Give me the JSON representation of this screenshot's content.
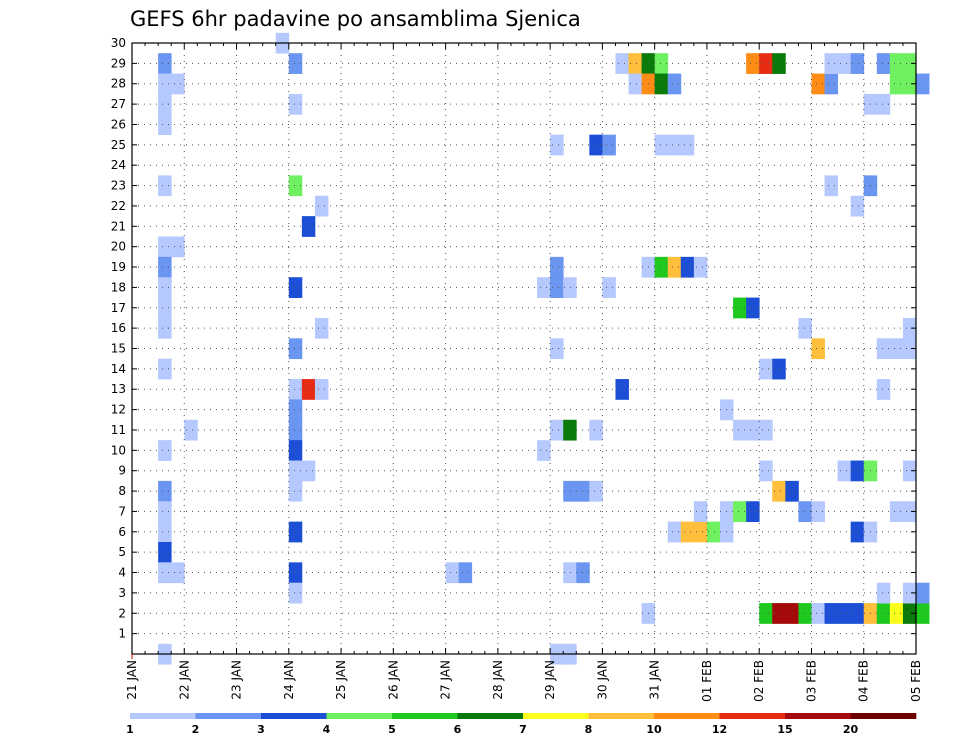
{
  "chart_data": {
    "type": "heatmap",
    "title": "GEFS 6hr padavine po ansamblima Sjenica",
    "xlabel": "",
    "ylabel": "",
    "x_ticks": [
      "21 JAN",
      "22 JAN",
      "23 JAN",
      "24 JAN",
      "25 JAN",
      "26 JAN",
      "27 JAN",
      "28 JAN",
      "29 JAN",
      "30 JAN",
      "31 JAN",
      "01 FEB",
      "02 FEB",
      "03 FEB",
      "04 FEB",
      "05 FEB"
    ],
    "x_steps_per_day": 4,
    "x_range_steps": [
      0,
      60
    ],
    "y_ticks": [
      "1",
      "2",
      "3",
      "4",
      "5",
      "6",
      "7",
      "8",
      "9",
      "10",
      "11",
      "12",
      "13",
      "14",
      "15",
      "16",
      "17",
      "18",
      "19",
      "20",
      "21",
      "22",
      "23",
      "24",
      "25",
      "26",
      "27",
      "28",
      "29",
      "30"
    ],
    "y_range": [
      0,
      30
    ],
    "grid": true,
    "colorbar": {
      "labels": [
        "1",
        "2",
        "3",
        "4",
        "5",
        "6",
        "7",
        "8",
        "10",
        "12",
        "15",
        "20"
      ],
      "colors": [
        "#b5c9ff",
        "#6a95f0",
        "#1d4fd6",
        "#6ff060",
        "#1ec81e",
        "#0a7a0a",
        "#ffff1e",
        "#ffbe3c",
        "#ff8c14",
        "#e62d14",
        "#a50a0a",
        "#6e0000"
      ]
    },
    "cells": [
      [
        2,
        0,
        0
      ],
      [
        2,
        29,
        1
      ],
      [
        2,
        28,
        0
      ],
      [
        2,
        27,
        0
      ],
      [
        2,
        26,
        0
      ],
      [
        2,
        23,
        0
      ],
      [
        2,
        20,
        0
      ],
      [
        3,
        20,
        0
      ],
      [
        2,
        19,
        1
      ],
      [
        2,
        18,
        0
      ],
      [
        2,
        17,
        0
      ],
      [
        2,
        16,
        0
      ],
      [
        2,
        14,
        0
      ],
      [
        2,
        10,
        0
      ],
      [
        2,
        8,
        1
      ],
      [
        2,
        7,
        0
      ],
      [
        2,
        6,
        0
      ],
      [
        2,
        5,
        2
      ],
      [
        2,
        4,
        0
      ],
      [
        3,
        4,
        0
      ],
      [
        3,
        28,
        0
      ],
      [
        4,
        11,
        0
      ],
      [
        11,
        30,
        0
      ],
      [
        12,
        29,
        1
      ],
      [
        12,
        27,
        0
      ],
      [
        12,
        23,
        3
      ],
      [
        12,
        18,
        2
      ],
      [
        12,
        15,
        1
      ],
      [
        12,
        13,
        0
      ],
      [
        13,
        13,
        9
      ],
      [
        14,
        13,
        0
      ],
      [
        12,
        12,
        1
      ],
      [
        12,
        11,
        1
      ],
      [
        12,
        10,
        2
      ],
      [
        12,
        9,
        0
      ],
      [
        12,
        8,
        0
      ],
      [
        12,
        6,
        2
      ],
      [
        12,
        4,
        2
      ],
      [
        12,
        3,
        0
      ],
      [
        13,
        21,
        2
      ],
      [
        13,
        9,
        0
      ],
      [
        14,
        22,
        0
      ],
      [
        14,
        16,
        0
      ],
      [
        24,
        4,
        0
      ],
      [
        25,
        4,
        1
      ],
      [
        32,
        25,
        0
      ],
      [
        32,
        19,
        1
      ],
      [
        31,
        18,
        0
      ],
      [
        32,
        18,
        1
      ],
      [
        33,
        18,
        0
      ],
      [
        32,
        15,
        0
      ],
      [
        32,
        11,
        0
      ],
      [
        33,
        11,
        5
      ],
      [
        31,
        10,
        0
      ],
      [
        33,
        8,
        1
      ],
      [
        34,
        8,
        1
      ],
      [
        35,
        8,
        0
      ],
      [
        33,
        4,
        0
      ],
      [
        34,
        4,
        1
      ],
      [
        32,
        0,
        0
      ],
      [
        33,
        0,
        0
      ],
      [
        35,
        25,
        2
      ],
      [
        36,
        25,
        1
      ],
      [
        36,
        18,
        0
      ],
      [
        35,
        11,
        0
      ],
      [
        37,
        13,
        2
      ],
      [
        37,
        29,
        0
      ],
      [
        38,
        29,
        7
      ],
      [
        39,
        29,
        5
      ],
      [
        40,
        29,
        3
      ],
      [
        38,
        28,
        0
      ],
      [
        39,
        28,
        8
      ],
      [
        40,
        28,
        5
      ],
      [
        41,
        28,
        1
      ],
      [
        39,
        19,
        0
      ],
      [
        40,
        19,
        4
      ],
      [
        41,
        19,
        7
      ],
      [
        42,
        19,
        2
      ],
      [
        43,
        19,
        0
      ],
      [
        40,
        25,
        0
      ],
      [
        41,
        25,
        0
      ],
      [
        42,
        25,
        0
      ],
      [
        39,
        2,
        0
      ],
      [
        41,
        6,
        0
      ],
      [
        42,
        6,
        7
      ],
      [
        43,
        6,
        7
      ],
      [
        44,
        6,
        3
      ],
      [
        45,
        6,
        0
      ],
      [
        43,
        7,
        0
      ],
      [
        45,
        7,
        0
      ],
      [
        46,
        7,
        3
      ],
      [
        47,
        7,
        2
      ],
      [
        45,
        12,
        0
      ],
      [
        46,
        11,
        0
      ],
      [
        47,
        11,
        0
      ],
      [
        48,
        11,
        0
      ],
      [
        46,
        17,
        4
      ],
      [
        47,
        17,
        2
      ],
      [
        48,
        14,
        0
      ],
      [
        49,
        14,
        2
      ],
      [
        47,
        29,
        8
      ],
      [
        48,
        29,
        9
      ],
      [
        49,
        29,
        5
      ],
      [
        48,
        9,
        0
      ],
      [
        49,
        8,
        7
      ],
      [
        50,
        8,
        2
      ],
      [
        51,
        7,
        1
      ],
      [
        52,
        7,
        0
      ],
      [
        51,
        16,
        0
      ],
      [
        52,
        15,
        7
      ],
      [
        48,
        2,
        4
      ],
      [
        49,
        2,
        10
      ],
      [
        50,
        2,
        10
      ],
      [
        51,
        2,
        4
      ],
      [
        52,
        2,
        0
      ],
      [
        53,
        2,
        2
      ],
      [
        54,
        2,
        2
      ],
      [
        55,
        2,
        2
      ],
      [
        52,
        28,
        8
      ],
      [
        53,
        28,
        1
      ],
      [
        53,
        29,
        0
      ],
      [
        54,
        29,
        0
      ],
      [
        55,
        29,
        1
      ],
      [
        53,
        23,
        0
      ],
      [
        55,
        22,
        0
      ],
      [
        54,
        9,
        0
      ],
      [
        55,
        9,
        2
      ],
      [
        56,
        9,
        3
      ],
      [
        55,
        6,
        2
      ],
      [
        56,
        6,
        0
      ],
      [
        56,
        27,
        0
      ],
      [
        57,
        27,
        0
      ],
      [
        57,
        29,
        1
      ],
      [
        56,
        23,
        1
      ],
      [
        57,
        15,
        0
      ],
      [
        58,
        15,
        0
      ],
      [
        59,
        15,
        0
      ],
      [
        59,
        16,
        0
      ],
      [
        57,
        13,
        0
      ],
      [
        56,
        2,
        7
      ],
      [
        57,
        2,
        4
      ],
      [
        58,
        2,
        6
      ],
      [
        59,
        2,
        5
      ],
      [
        60,
        2,
        4
      ],
      [
        57,
        3,
        0
      ],
      [
        59,
        3,
        0
      ],
      [
        60,
        3,
        1
      ],
      [
        58,
        29,
        3
      ],
      [
        59,
        29,
        3
      ],
      [
        58,
        28,
        3
      ],
      [
        59,
        28,
        3
      ],
      [
        60,
        28,
        1
      ],
      [
        59,
        9,
        0
      ],
      [
        58,
        7,
        0
      ],
      [
        59,
        7,
        0
      ]
    ]
  }
}
